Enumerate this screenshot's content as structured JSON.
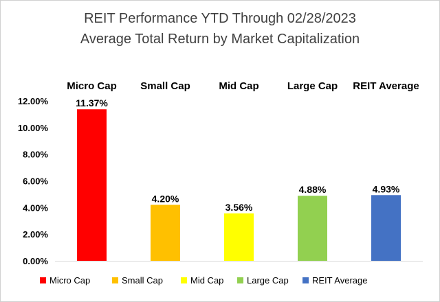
{
  "chart_data": {
    "type": "bar",
    "title": "REIT Performance YTD Through 02/28/2023",
    "subtitle": "Average Total Return by Market Capitalization",
    "categories": [
      "Micro Cap",
      "Small Cap",
      "Mid Cap",
      "Large Cap",
      "REIT Average"
    ],
    "values": [
      11.37,
      4.2,
      3.56,
      4.88,
      4.93
    ],
    "data_labels": [
      "11.37%",
      "4.20%",
      "3.56%",
      "4.88%",
      "4.93%"
    ],
    "colors": [
      "#ff0000",
      "#ffc000",
      "#ffff00",
      "#92d050",
      "#4472c4"
    ],
    "ylim": [
      0,
      12
    ],
    "yticks": [
      0,
      2,
      4,
      6,
      8,
      10,
      12
    ],
    "ytick_labels": [
      "0.00%",
      "2.00%",
      "4.00%",
      "6.00%",
      "8.00%",
      "10.00%",
      "12.00%"
    ],
    "xlabel": "",
    "ylabel": "",
    "grid": false,
    "legend": {
      "position": "bottom",
      "entries": [
        "Micro Cap",
        "Small Cap",
        "Mid Cap",
        "Large Cap",
        "REIT Average"
      ]
    }
  }
}
